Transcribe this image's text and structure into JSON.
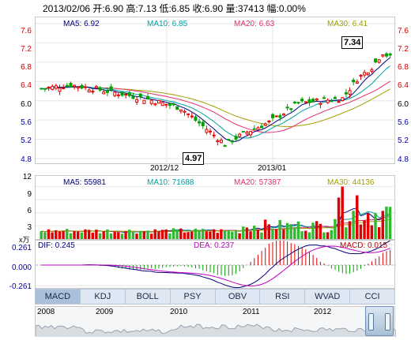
{
  "header": {
    "info": "2013/02/06 开:6.90  高:7.13  低:6.85  收:6.90  量:37413  幅:0.00%"
  },
  "price_panel": {
    "ma5": "MA5: 6.92",
    "ma10": "MA10: 6.85",
    "ma20": "MA20: 6.63",
    "ma30": "MA30: 6.41",
    "y_ticks": [
      "7.6",
      "7.2",
      "6.8",
      "6.4",
      "6.0",
      "5.6",
      "5.2",
      "4.8"
    ],
    "x_ticks": [
      "2012/12",
      "2013/01"
    ],
    "max_label": "7.34",
    "min_label": "4.97"
  },
  "volume_panel": {
    "ma5": "MA5: 55981",
    "ma10": "MA10: 71688",
    "ma20": "MA20: 57387",
    "ma30": "MA30: 44136",
    "y_ticks": [
      "12",
      "9",
      "6",
      "3"
    ],
    "unit": "x万"
  },
  "macd_panel": {
    "dif": "DIF: 0.245",
    "dea": "DEA: 0.237",
    "macd": "MACD: 0.015",
    "y_ticks": [
      "0.261",
      "0.000",
      "-0.261"
    ]
  },
  "tabs": [
    "MACD",
    "KDJ",
    "BOLL",
    "PSY",
    "OBV",
    "RSI",
    "WVAD",
    "CCI"
  ],
  "timeline_years": [
    "2008",
    "2009",
    "2010",
    "2011",
    "2012"
  ],
  "colors": {
    "up": "#e00000",
    "down": "#00a000",
    "ma5": "#000080",
    "ma10": "#00a0a0",
    "ma20": "#e0306a",
    "ma30": "#a0a000"
  }
}
